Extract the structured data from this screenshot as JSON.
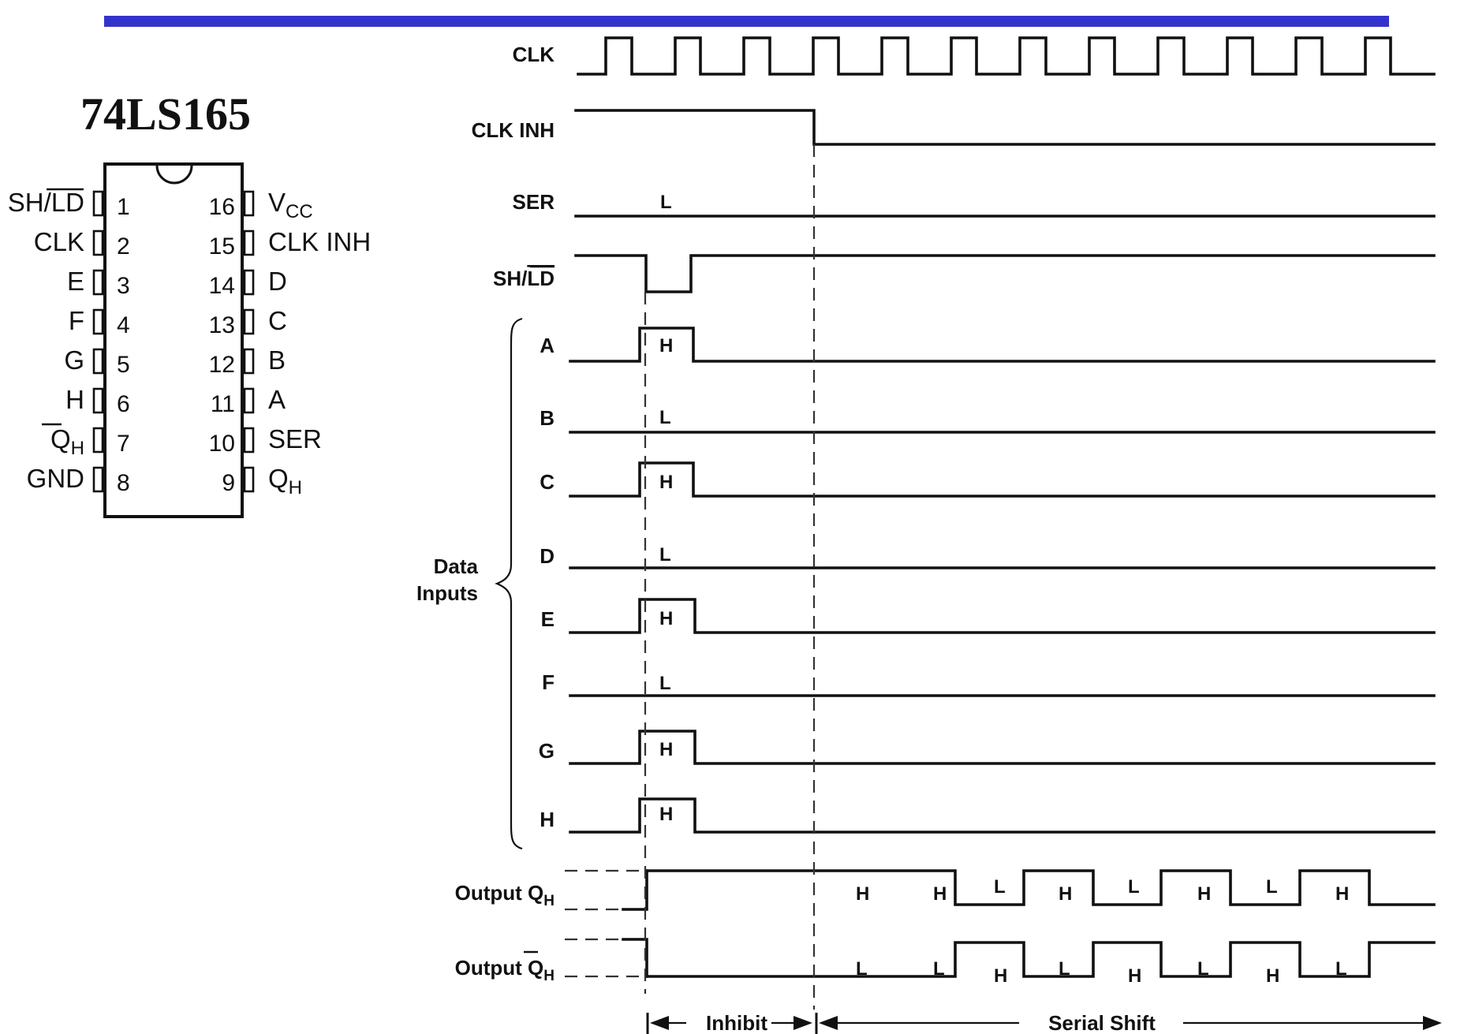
{
  "accent_bar_color": "#3333cc",
  "chip": {
    "title": "74LS165",
    "left_pins": [
      {
        "num": "1",
        "name": "SH/LD",
        "overline": "LD",
        "prefix": "SH/"
      },
      {
        "num": "2",
        "name": "CLK"
      },
      {
        "num": "3",
        "name": "E"
      },
      {
        "num": "4",
        "name": "F"
      },
      {
        "num": "5",
        "name": "G"
      },
      {
        "num": "6",
        "name": "H"
      },
      {
        "num": "7",
        "name": "QH",
        "bar": true
      },
      {
        "num": "8",
        "name": "GND"
      }
    ],
    "right_pins": [
      {
        "num": "16",
        "name": "VCC",
        "sub": "CC",
        "main": "V"
      },
      {
        "num": "15",
        "name": "CLK INH"
      },
      {
        "num": "14",
        "name": "D"
      },
      {
        "num": "13",
        "name": "C"
      },
      {
        "num": "12",
        "name": "B"
      },
      {
        "num": "11",
        "name": "A"
      },
      {
        "num": "10",
        "name": "SER"
      },
      {
        "num": "9",
        "name": "QH",
        "sub": "H",
        "main": "Q"
      }
    ]
  },
  "timing": {
    "signals": {
      "clk": "CLK",
      "clk_inh": "CLK INH",
      "ser": "SER",
      "sh_ld_prefix": "SH/",
      "sh_ld_overline": "LD",
      "a": "A",
      "b": "B",
      "c": "C",
      "d": "D",
      "e": "E",
      "f": "F",
      "g": "G",
      "h": "H",
      "data_inputs_line1": "Data",
      "data_inputs_line2": "Inputs",
      "output_qh_prefix": "Output Q",
      "output_qh_sub": "H",
      "output_qhbar_prefix": "Output ",
      "output_qhbar_main": "Q",
      "output_qhbar_sub": "H"
    },
    "levels": {
      "ser": "L",
      "a": "H",
      "b": "L",
      "c": "H",
      "d": "L",
      "e": "H",
      "f": "L",
      "g": "H",
      "h": "H"
    },
    "qh_levels": [
      "H",
      "H",
      "L",
      "H",
      "L",
      "H",
      "L",
      "H"
    ],
    "qhbar_levels": [
      "L",
      "L",
      "H",
      "L",
      "H",
      "L",
      "H",
      "L"
    ],
    "phases": {
      "inhibit": "Inhibit",
      "serial_shift": "Serial Shift"
    }
  }
}
